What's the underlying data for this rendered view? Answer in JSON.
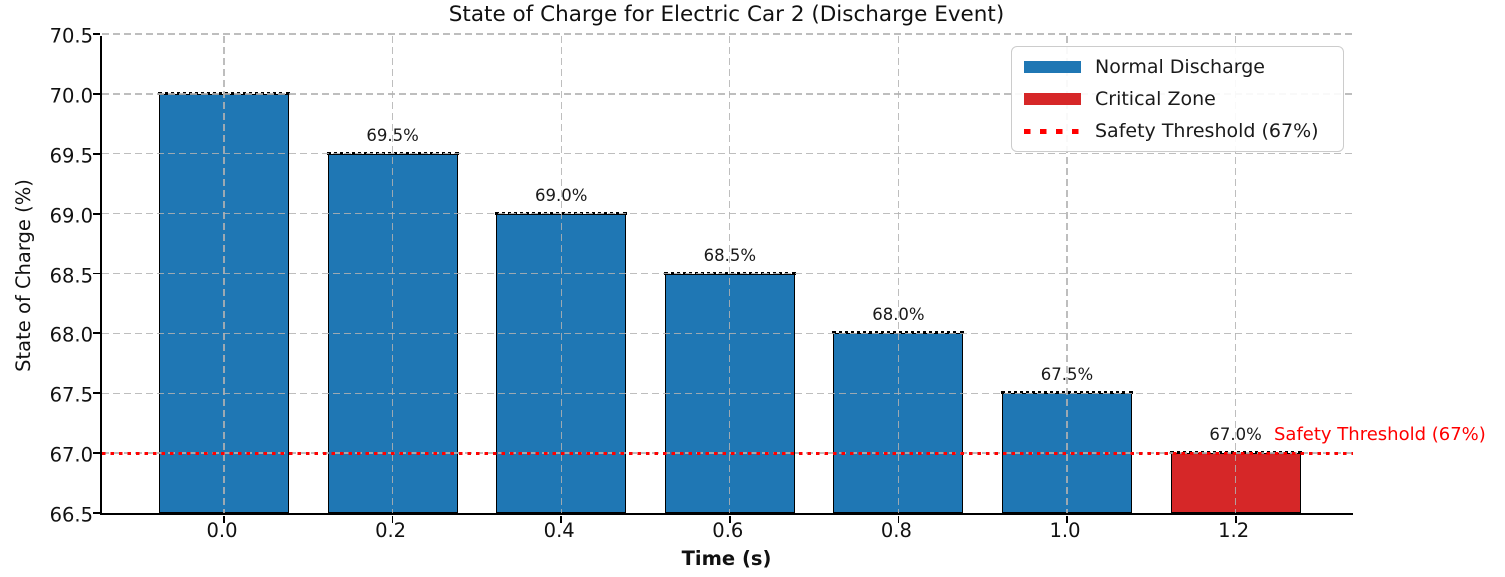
{
  "chart_data": {
    "type": "bar",
    "title": "State of Charge for Electric Car 2 (Discharge Event)",
    "xlabel": "Time (s)",
    "ylabel": "State of Charge (%)",
    "categories": [
      "0.0",
      "0.2",
      "0.4",
      "0.6",
      "0.8",
      "1.0",
      "1.2"
    ],
    "x": [
      0.0,
      0.2,
      0.4,
      0.6,
      0.8,
      1.0,
      1.2
    ],
    "values": [
      70.0,
      69.5,
      69.0,
      68.5,
      68.0,
      67.5,
      67.0
    ],
    "bar_value_labels": [
      "",
      "69.5%",
      "69.0%",
      "68.5%",
      "68.0%",
      "67.5%",
      "67.0%"
    ],
    "bar_zones": [
      "normal",
      "normal",
      "normal",
      "normal",
      "normal",
      "normal",
      "critical"
    ],
    "ylim": [
      66.5,
      70.5
    ],
    "xlim": [
      -0.1447,
      1.3416
    ],
    "yticks": [
      66.5,
      67.0,
      67.5,
      68.0,
      68.5,
      69.0,
      69.5,
      70.0,
      70.5
    ],
    "ytick_labels": [
      "66.5",
      "67.0",
      "67.5",
      "68.0",
      "68.5",
      "69.0",
      "69.5",
      "70.0",
      "70.5"
    ],
    "grid": true,
    "threshold": {
      "value": 67.0,
      "annotation": "Safety Threshold (67%)"
    },
    "legend": {
      "position": "top-right",
      "entries": [
        {
          "swatch": "patch",
          "color": "#1f77b4",
          "label": "Normal Discharge"
        },
        {
          "swatch": "patch",
          "color": "#d62728",
          "label": "Critical Zone"
        },
        {
          "swatch": "dotted-line",
          "color": "#ff0000",
          "label": "Safety Threshold (67%)"
        }
      ]
    },
    "colors": {
      "normal": "#1f77b4",
      "critical": "#d62728",
      "threshold": "#ff0000",
      "grid": "#b2b2b2",
      "bar_edge": "#000000"
    }
  }
}
